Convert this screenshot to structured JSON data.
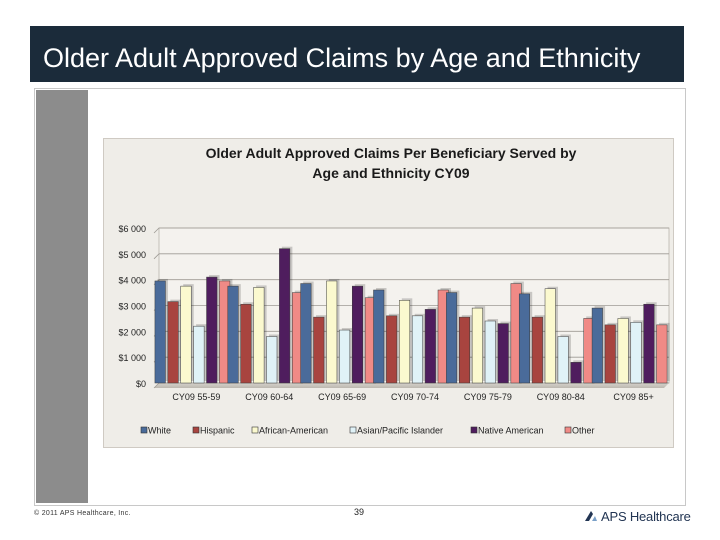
{
  "slide": {
    "title": "Older Adult Approved Claims by Age and Ethnicity",
    "footer_copyright": "© 2011 APS Healthcare, Inc.",
    "page_number": "39",
    "logo_text": "APS Healthcare"
  },
  "chart_data": {
    "type": "bar",
    "title": "Older Adult Approved Claims Per Beneficiary Served by Age and Ethnicity CY09",
    "title_lines": [
      "Older Adult Approved Claims Per Beneficiary Served by",
      "Age and Ethnicity CY09"
    ],
    "categories": [
      "CY09 55-59",
      "CY09 60-64",
      "CY09 65-69",
      "CY09 70-74",
      "CY09 75-79",
      "CY09 80-84",
      "CY09 85+"
    ],
    "ylim": [
      0,
      6000
    ],
    "yticks": [
      0,
      1000,
      2000,
      3000,
      4000,
      5000,
      6000
    ],
    "ytick_labels": [
      "$0",
      "$1 000",
      "$2 000",
      "$3 000",
      "$4 000",
      "$5 000",
      "$6 000"
    ],
    "legend_position": "bottom",
    "grid": true,
    "series": [
      {
        "name": "White",
        "color": "#4a6b9a",
        "values": [
          3950,
          3750,
          3850,
          3600,
          3500,
          3450,
          2900
        ]
      },
      {
        "name": "Hispanic",
        "color": "#a8443f",
        "values": [
          3150,
          3050,
          2550,
          2600,
          2550,
          2550,
          2250
        ]
      },
      {
        "name": "African-American",
        "color": "#fbf9cf",
        "values": [
          3750,
          3700,
          3950,
          3200,
          2900,
          3650,
          2500
        ]
      },
      {
        "name": "Asian/Pacific Islander",
        "color": "#e0f2f7",
        "values": [
          2200,
          1800,
          2050,
          2600,
          2400,
          1800,
          2350
        ]
      },
      {
        "name": "Native American",
        "color": "#4f1d5e",
        "values": [
          4100,
          5200,
          3750,
          2850,
          2300,
          800,
          3050
        ]
      },
      {
        "name": "Other",
        "color": "#f08a86",
        "values": [
          3950,
          3500,
          3300,
          3600,
          3850,
          2500,
          2250
        ]
      }
    ]
  }
}
